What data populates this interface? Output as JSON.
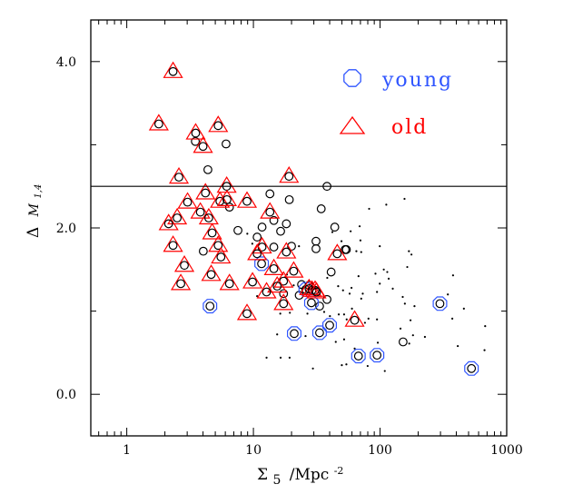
{
  "chart_data": {
    "type": "scatter",
    "title": "",
    "xlabel": "Σ 5 /Mpc⁻²",
    "xlabel_parts": {
      "sigma": "Σ",
      "sub": "5",
      "rest": "/Mpc",
      "sup": "-2"
    },
    "ylabel": "Δ M1,4",
    "ylabel_parts": {
      "delta": "Δ",
      "var": "M",
      "sub": "1,4"
    },
    "xscale": "log",
    "xlim": [
      0.52,
      1000
    ],
    "ylim": [
      -0.5,
      4.5
    ],
    "x_ticks": [
      {
        "value": 1,
        "label": "1"
      },
      {
        "value": 10,
        "label": "10"
      },
      {
        "value": 100,
        "label": "100"
      },
      {
        "value": 1000,
        "label": "1000"
      }
    ],
    "y_ticks": [
      {
        "value": 0,
        "label": "0.0"
      },
      {
        "value": 2,
        "label": "2.0"
      },
      {
        "value": 4,
        "label": "4.0"
      }
    ],
    "y_minor_ticks": [
      1,
      3
    ],
    "grid": false,
    "reference_line": {
      "y": 2.5
    },
    "legend": {
      "placement": "top-right",
      "entries": [
        {
          "label": "young",
          "marker": "octagon",
          "color": "#2f55ff"
        },
        {
          "label": "old",
          "marker": "triangle",
          "color": "#ff0000"
        }
      ]
    },
    "colors": {
      "young": "#2f55ff",
      "old": "#ff0000",
      "base": "#000000"
    },
    "series": [
      {
        "name": "old",
        "marker": "triangle+circle",
        "points": [
          [
            2.32,
            3.88
          ],
          [
            1.79,
            3.25
          ],
          [
            3.5,
            3.14
          ],
          [
            5.27,
            3.23
          ],
          [
            4.0,
            2.98
          ],
          [
            2.58,
            2.61
          ],
          [
            19.1,
            2.62
          ],
          [
            6.15,
            2.5
          ],
          [
            4.18,
            2.42
          ],
          [
            3.02,
            2.31
          ],
          [
            5.44,
            2.32
          ],
          [
            6.18,
            2.34
          ],
          [
            8.9,
            2.32
          ],
          [
            13.5,
            2.19
          ],
          [
            3.81,
            2.19
          ],
          [
            4.44,
            2.12
          ],
          [
            2.5,
            2.12
          ],
          [
            2.14,
            2.05
          ],
          [
            4.72,
            1.94
          ],
          [
            2.32,
            1.79
          ],
          [
            5.27,
            1.79
          ],
          [
            5.54,
            1.65
          ],
          [
            2.85,
            1.55
          ],
          [
            4.64,
            1.44
          ],
          [
            2.67,
            1.33
          ],
          [
            6.47,
            1.33
          ],
          [
            9.84,
            1.35
          ],
          [
            11.7,
            1.77
          ],
          [
            10.7,
            1.69
          ],
          [
            18.2,
            1.71
          ],
          [
            14.5,
            1.51
          ],
          [
            20.8,
            1.48
          ],
          [
            17.3,
            1.36
          ],
          [
            15.4,
            1.3
          ],
          [
            12.7,
            1.23
          ],
          [
            17.3,
            1.09
          ],
          [
            8.9,
            0.97
          ],
          [
            29,
            1.25
          ],
          [
            30.7,
            1.25
          ],
          [
            27.5,
            1.27
          ],
          [
            31.5,
            1.23
          ],
          [
            45.9,
            1.69
          ],
          [
            63,
            0.89
          ]
        ]
      },
      {
        "name": "young",
        "marker": "octagon+circle",
        "points": [
          [
            11.6,
            1.57
          ],
          [
            4.54,
            1.06
          ],
          [
            21,
            0.73
          ],
          [
            28.7,
            1.1
          ],
          [
            25.9,
            1.26
          ],
          [
            40,
            0.83
          ],
          [
            33.3,
            0.74
          ],
          [
            67.5,
            0.46
          ],
          [
            94.6,
            0.47
          ],
          [
            297,
            1.09
          ],
          [
            527,
            0.31
          ]
        ]
      },
      {
        "name": "other",
        "marker": "circle",
        "points": [
          [
            3.48,
            3.04
          ],
          [
            6.08,
            3.01
          ],
          [
            4.37,
            2.7
          ],
          [
            13.5,
            2.41
          ],
          [
            19.2,
            2.34
          ],
          [
            6.47,
            2.25
          ],
          [
            14.5,
            2.09
          ],
          [
            18.2,
            2.05
          ],
          [
            11.7,
            2.01
          ],
          [
            16.4,
            1.96
          ],
          [
            7.55,
            1.97
          ],
          [
            4.02,
            1.72
          ],
          [
            14.5,
            1.77
          ],
          [
            20,
            1.78
          ],
          [
            31.2,
            1.84
          ],
          [
            31.2,
            1.75
          ],
          [
            17.3,
            1.21
          ],
          [
            23,
            1.19
          ],
          [
            24,
            1.32
          ],
          [
            27.5,
            1.31
          ],
          [
            38.1,
            2.5
          ],
          [
            34.3,
            2.23
          ],
          [
            10.7,
            1.89
          ],
          [
            43.9,
            2.01
          ],
          [
            54.2,
            1.74
          ],
          [
            53,
            1.74
          ],
          [
            41.1,
            1.47
          ],
          [
            38.1,
            1.14
          ],
          [
            33.3,
            1.06
          ],
          [
            152,
            0.63
          ]
        ]
      },
      {
        "name": "field",
        "marker": "dot",
        "points": [
          [
            156,
            2.35
          ],
          [
            112,
            2.28
          ],
          [
            82,
            2.23
          ],
          [
            69,
            2.02
          ],
          [
            58.6,
            1.96
          ],
          [
            42,
            1.95
          ],
          [
            70,
            1.85
          ],
          [
            49.6,
            1.84
          ],
          [
            99.5,
            1.78
          ],
          [
            22.9,
            1.78
          ],
          [
            65,
            1.72
          ],
          [
            71,
            1.71
          ],
          [
            169,
            1.72
          ],
          [
            177,
            1.68
          ],
          [
            164,
            1.53
          ],
          [
            107,
            1.5
          ],
          [
            114,
            1.47
          ],
          [
            92,
            1.45
          ],
          [
            67.6,
            1.42
          ],
          [
            117,
            1.39
          ],
          [
            99.5,
            1.33
          ],
          [
            38.3,
            1.4
          ],
          [
            46.7,
            1.3
          ],
          [
            59.5,
            1.28
          ],
          [
            51,
            1.25
          ],
          [
            126,
            1.27
          ],
          [
            94.6,
            1.23
          ],
          [
            73,
            1.21
          ],
          [
            57.5,
            1.21
          ],
          [
            71,
            1.15
          ],
          [
            151,
            1.17
          ],
          [
            157,
            1.09
          ],
          [
            187,
            1.06
          ],
          [
            377,
            1.43
          ],
          [
            343,
            1.2
          ],
          [
            459,
            1.03
          ],
          [
            372,
            0.91
          ],
          [
            676,
            0.82
          ],
          [
            60,
            1.03
          ],
          [
            19.4,
            0.98
          ],
          [
            16.3,
            0.97
          ],
          [
            26.7,
            0.97
          ],
          [
            36.2,
            0.99
          ],
          [
            40.2,
            0.94
          ],
          [
            47.2,
            0.96
          ],
          [
            52,
            0.96
          ],
          [
            54.5,
            0.9
          ],
          [
            81,
            0.91
          ],
          [
            94.6,
            0.9
          ],
          [
            76,
            0.86
          ],
          [
            174,
            0.89
          ],
          [
            145,
            0.79
          ],
          [
            182,
            0.71
          ],
          [
            226,
            0.69
          ],
          [
            96,
            0.62
          ],
          [
            170,
            0.61
          ],
          [
            52,
            0.66
          ],
          [
            44.7,
            0.63
          ],
          [
            25.8,
            0.7
          ],
          [
            15.4,
            0.72
          ],
          [
            63,
            0.55
          ],
          [
            411,
            0.58
          ],
          [
            668,
            0.53
          ],
          [
            12.7,
            0.44
          ],
          [
            16.4,
            0.44
          ],
          [
            19.3,
            0.44
          ],
          [
            29.5,
            0.31
          ],
          [
            49.9,
            0.35
          ],
          [
            54.2,
            0.36
          ],
          [
            79.8,
            0.34
          ],
          [
            109,
            0.28
          ],
          [
            8.95,
            1.93
          ],
          [
            9.8,
            1.81
          ],
          [
            18.4,
            1.44
          ],
          [
            20.8,
            1.31
          ],
          [
            10.7,
            1.18
          ]
        ]
      }
    ]
  }
}
